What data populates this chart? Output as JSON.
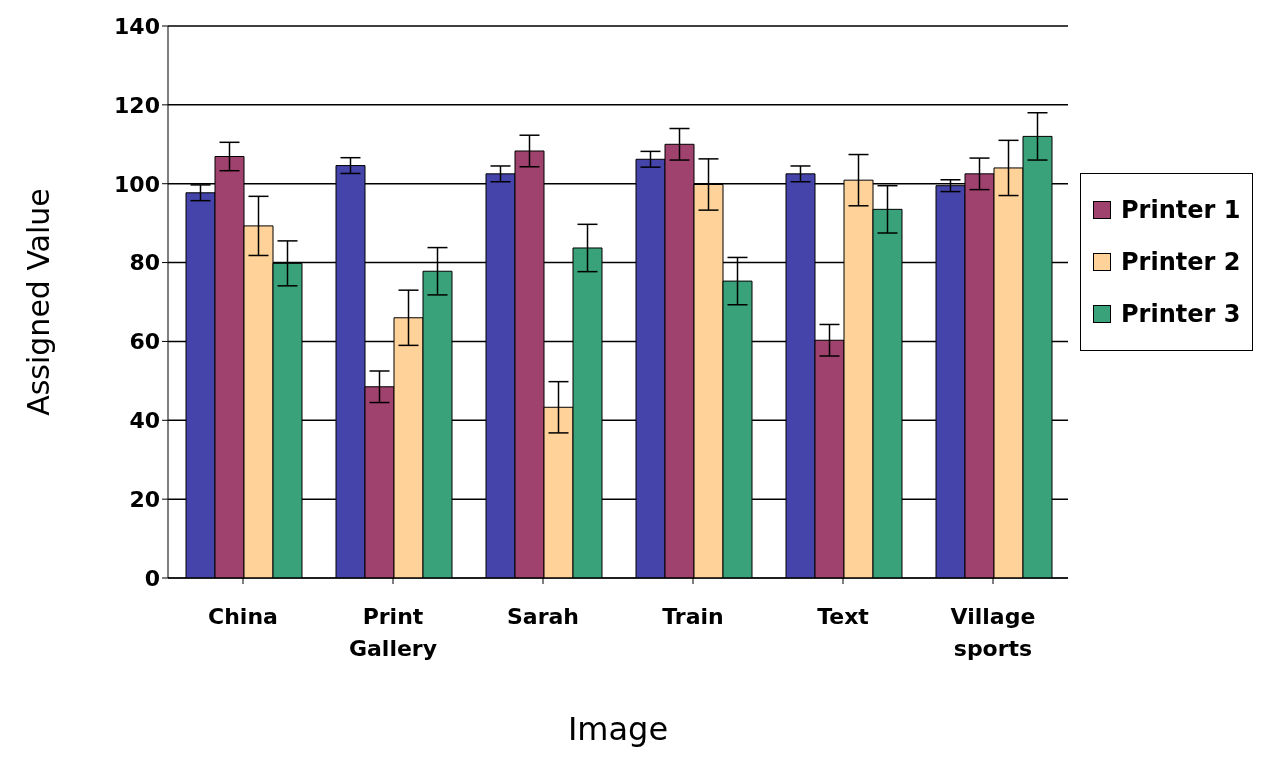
{
  "chart_data": {
    "type": "bar",
    "xlabel": "Image",
    "ylabel": "Assigned Value",
    "categories": [
      "China",
      "Print Gallery",
      "Sarah",
      "Train",
      "Text",
      "Village sports"
    ],
    "series": [
      {
        "color": "#4444aa",
        "values": [
          97.7,
          104.6,
          102.5,
          106.2,
          102.5,
          99.5
        ],
        "errors": [
          2,
          2,
          2,
          2,
          2,
          1.5
        ]
      },
      {
        "name": "Printer 1",
        "color": "#a0426e",
        "values": [
          106.9,
          48.5,
          108.3,
          110,
          60.3,
          102.5
        ],
        "errors": [
          3.6,
          4,
          4,
          4,
          4,
          4
        ]
      },
      {
        "name": "Printer 2",
        "color": "#ffd29a",
        "values": [
          89.3,
          66,
          43.3,
          99.8,
          100.9,
          104
        ],
        "errors": [
          7.5,
          7,
          6.5,
          6.5,
          6.5,
          7
        ]
      },
      {
        "name": "Printer 3",
        "color": "#3aa27a",
        "values": [
          79.8,
          77.8,
          83.7,
          75.3,
          93.5,
          112
        ],
        "errors": [
          5.7,
          6,
          6,
          6,
          6,
          6
        ]
      }
    ],
    "ylim": [
      0,
      140
    ],
    "yticks": [
      0,
      20,
      40,
      60,
      80,
      100,
      120,
      140
    ],
    "grid": "y",
    "legend": "right"
  }
}
